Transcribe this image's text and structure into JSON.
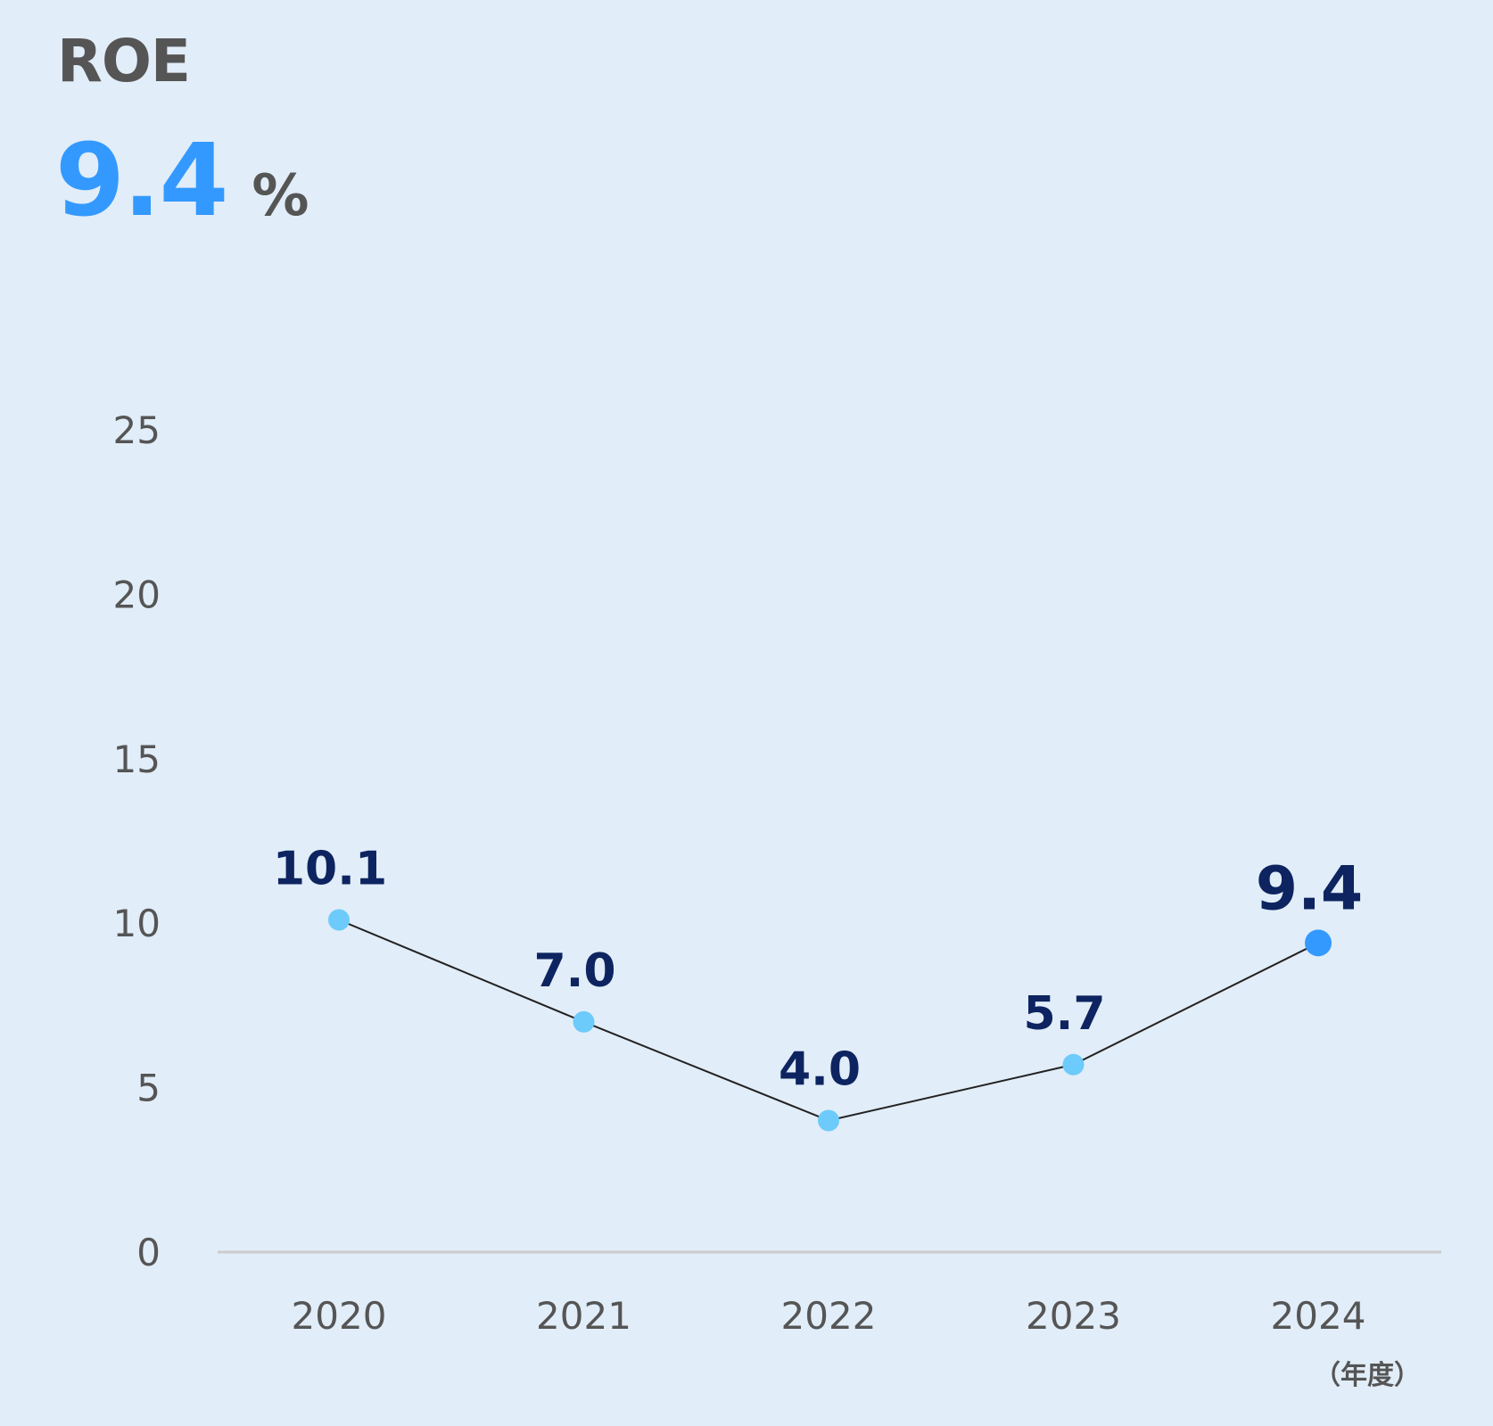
{
  "header": {
    "title": "ROE",
    "value": "9.4",
    "unit": "%"
  },
  "chart_data": {
    "type": "line",
    "title": "ROE",
    "x_unit_label": "（年度）",
    "categories": [
      "2020",
      "2021",
      "2022",
      "2023",
      "2024"
    ],
    "values": [
      10.1,
      7.0,
      4.0,
      5.7,
      9.4
    ],
    "value_labels": [
      "10.1",
      "7.0",
      "4.0",
      "5.7",
      "9.4"
    ],
    "highlight_index": 4,
    "ylim": [
      0,
      25
    ],
    "yticks": [
      0,
      5,
      10,
      15,
      20,
      25
    ],
    "grid": false,
    "colors": {
      "background": "#E1EDF8",
      "point": "#6CCBFA",
      "highlight_point": "#3399FF",
      "line": "#222222",
      "data_label": "#0D2460",
      "axis_text": "#555555",
      "baseline": "#CCCCCC"
    }
  }
}
